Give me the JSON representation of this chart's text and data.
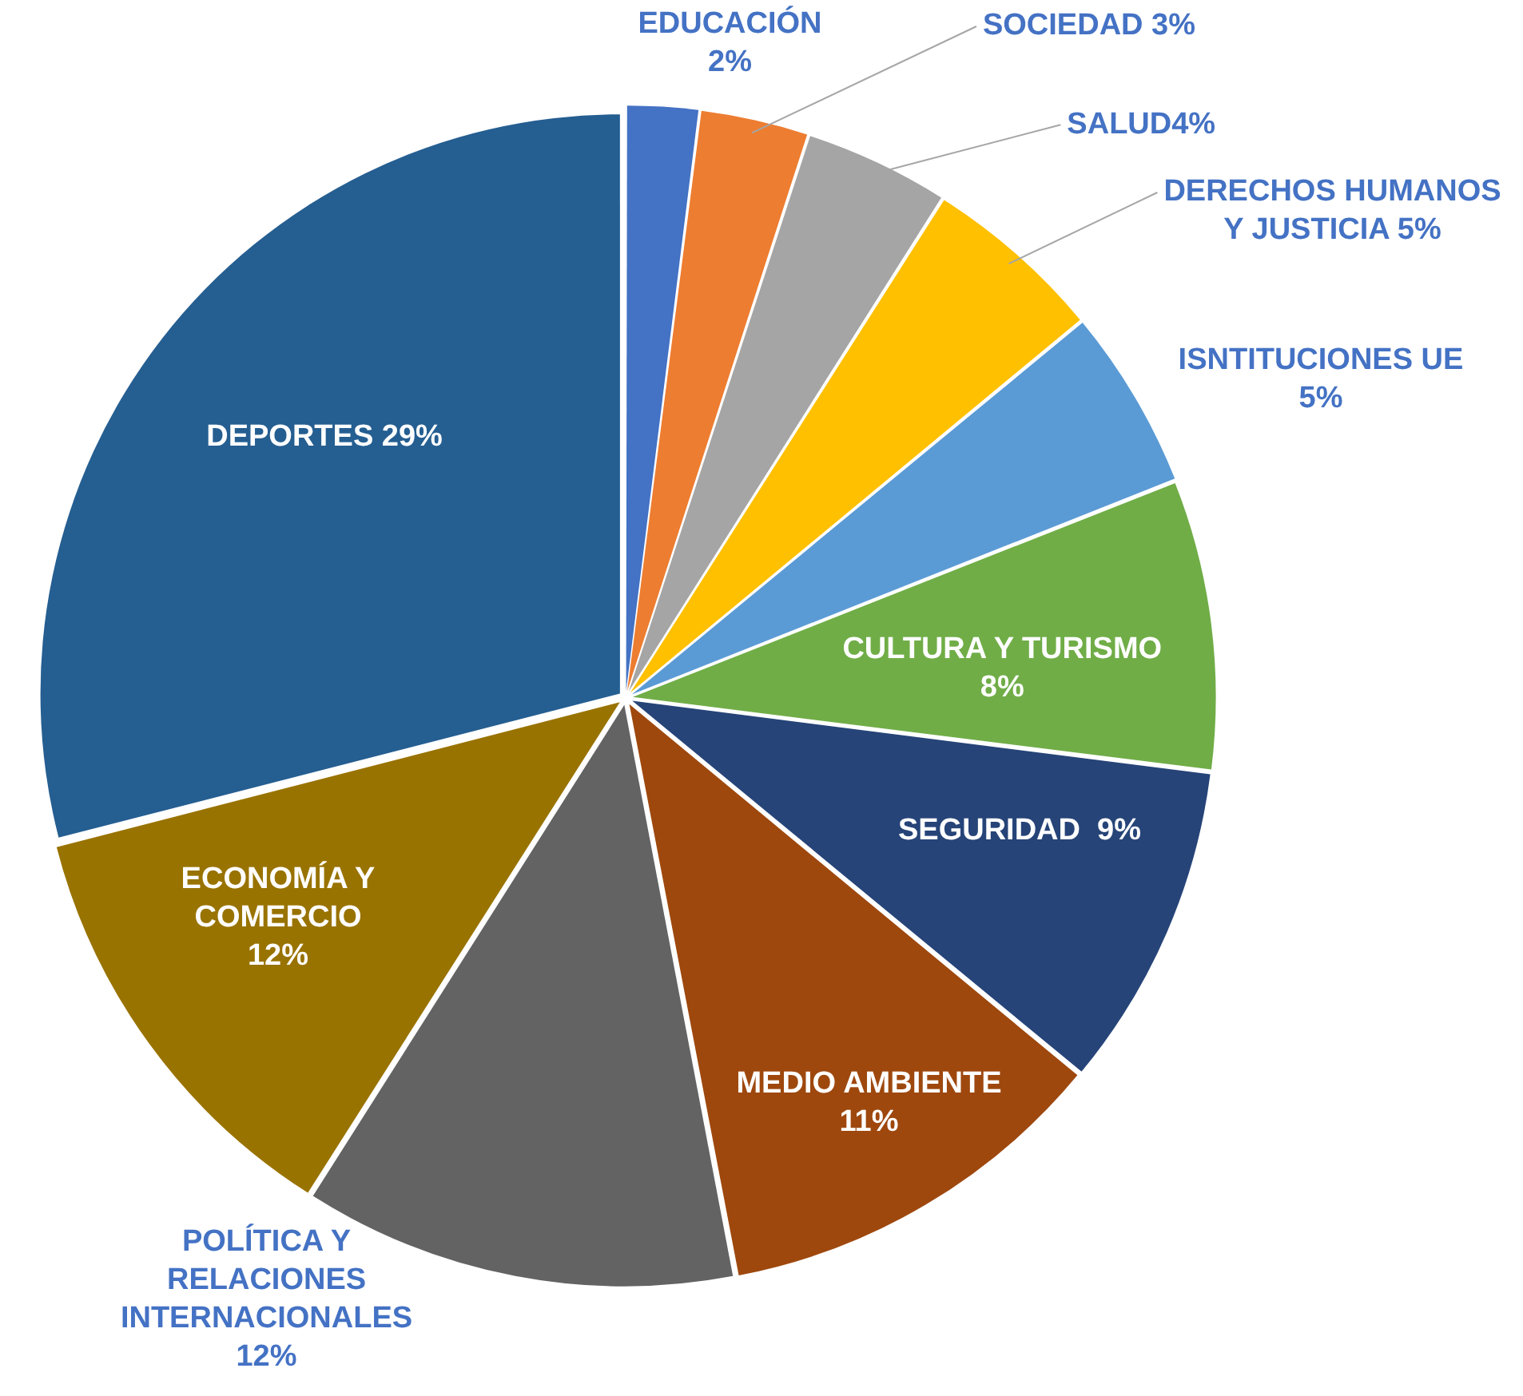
{
  "chart_data": {
    "type": "pie",
    "categories": [
      "EDUCACIÓN\n2%",
      "SOCIEDAD 3%",
      "SALUD4%",
      "DERECHOS HUMANOS\nY JUSTICIA 5%",
      "ISNTITUCIONES UE\n5%",
      "CULTURA Y TURISMO\n8%",
      "SEGURIDAD  9%",
      "MEDIO AMBIENTE\n11%",
      "POLÍTICA Y\nRELACIONES\nINTERNACIONALES\n12%",
      "ECONOMÍA Y\nCOMERCIO\n12%",
      "DEPORTES 29%"
    ],
    "values": [
      2,
      3,
      4,
      5,
      5,
      8,
      9,
      11,
      12,
      12,
      29
    ],
    "colors": [
      "#4472c4",
      "#ed7d31",
      "#a5a5a5",
      "#ffc000",
      "#5b9bd5",
      "#70ad47",
      "#264478",
      "#9e480e",
      "#636363",
      "#997300",
      "#255e91"
    ]
  }
}
